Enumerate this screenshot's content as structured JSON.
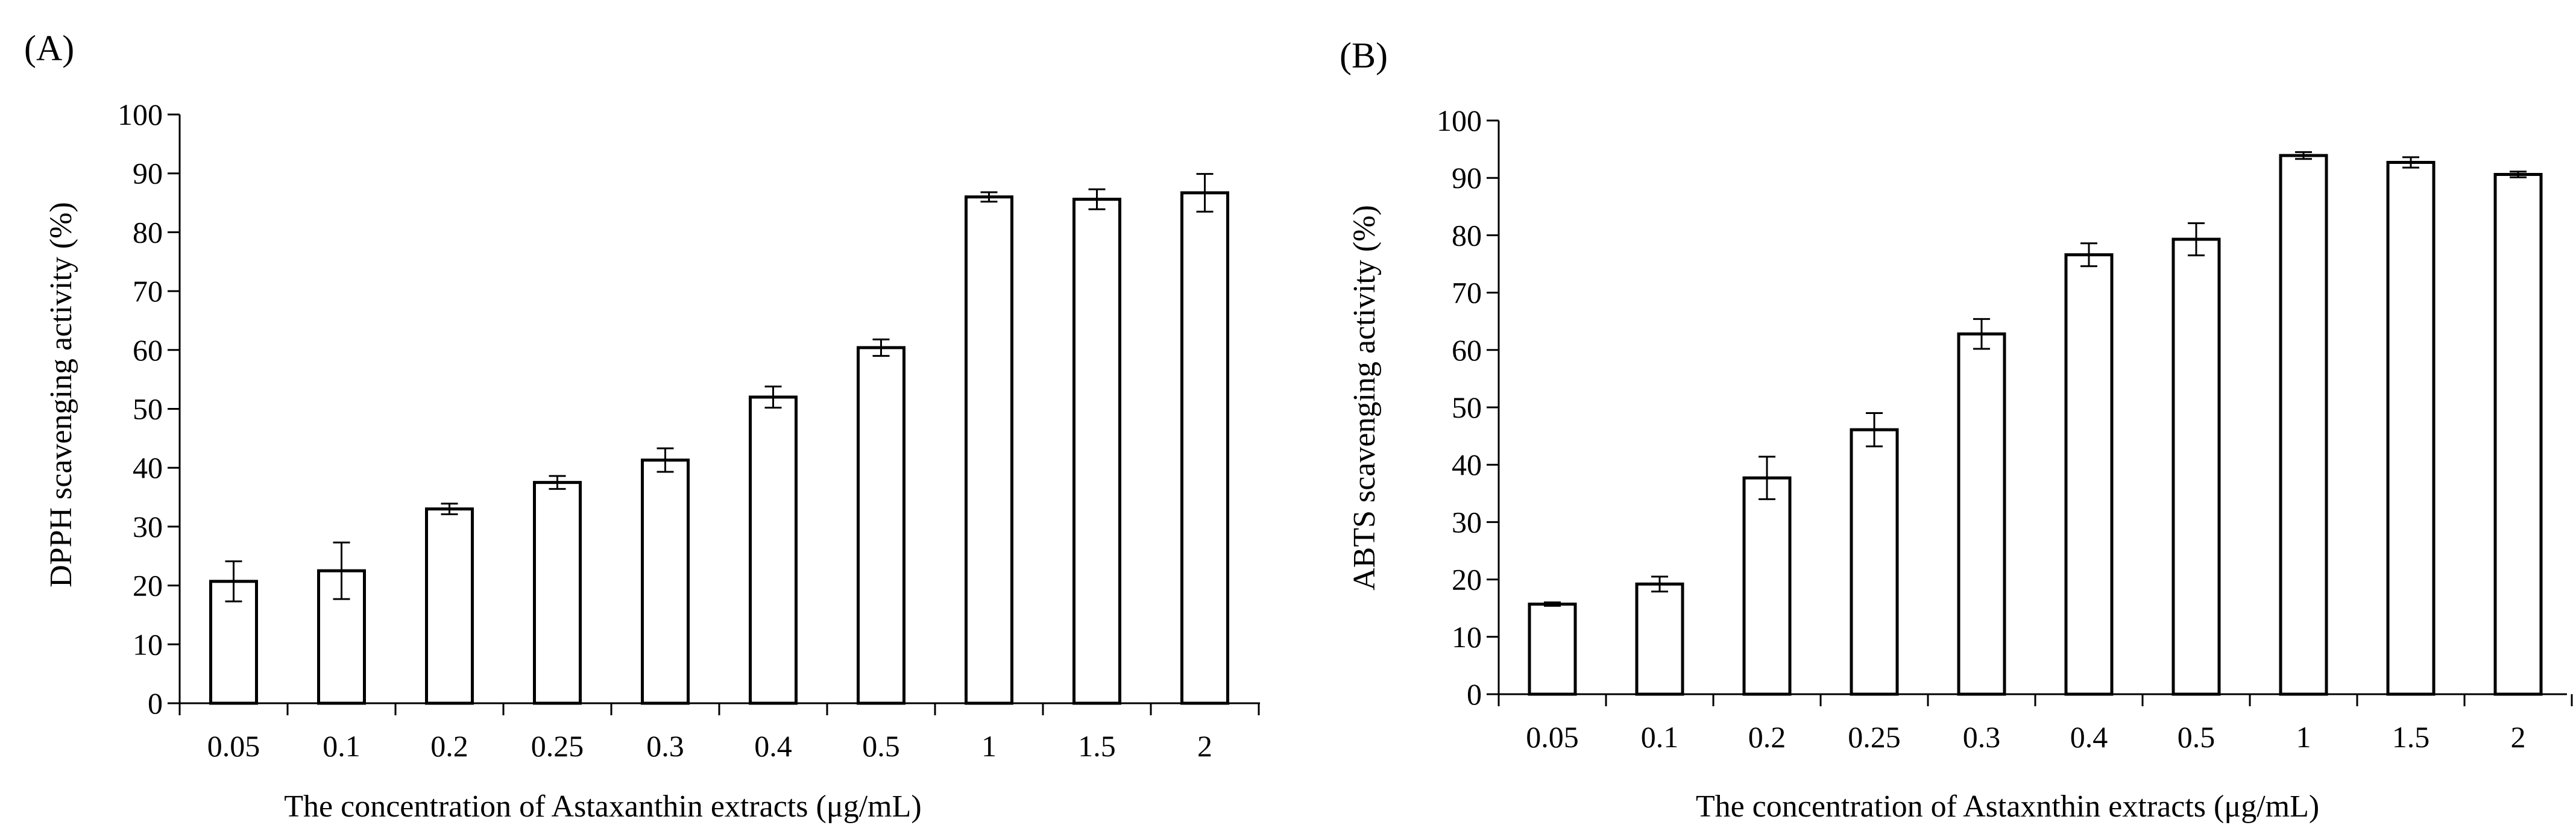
{
  "chart_data": [
    {
      "type": "bar",
      "panel": "(A)",
      "categories": [
        "0.05",
        "0.1",
        "0.2",
        "0.25",
        "0.3",
        "0.4",
        "0.5",
        "1",
        "1.5",
        "2"
      ],
      "values": [
        20.7,
        22.5,
        33.0,
        37.5,
        41.3,
        52.0,
        60.4,
        86.0,
        85.6,
        86.7
      ],
      "errors": [
        3.4,
        4.8,
        0.9,
        1.1,
        2.0,
        1.8,
        1.4,
        0.8,
        1.7,
        3.2
      ],
      "ylabel": "DPPH scavenging activity (%)",
      "xlabel": "The concentration of Astaxanthin extracts (μg/mL)",
      "ylim": [
        0,
        100
      ],
      "yticks": [
        "0",
        "10",
        "20",
        "30",
        "40",
        "50",
        "60",
        "70",
        "80",
        "90",
        "100"
      ],
      "grid": false
    },
    {
      "type": "bar",
      "panel": "(B)",
      "categories": [
        "0.05",
        "0.1",
        "0.2",
        "0.25",
        "0.3",
        "0.4",
        "0.5",
        "1",
        "1.5",
        "2"
      ],
      "values": [
        15.7,
        19.2,
        37.7,
        46.1,
        62.8,
        76.6,
        79.3,
        93.9,
        92.7,
        90.6
      ],
      "errors": [
        0.3,
        1.3,
        3.7,
        2.9,
        2.6,
        2.0,
        2.8,
        0.6,
        0.9,
        0.5
      ],
      "ylabel": "ABTS scavenging activity (%)",
      "xlabel": "The concentration of Astaxnthin extracts (μg/mL)",
      "ylim": [
        0,
        100
      ],
      "yticks": [
        "0",
        "10",
        "20",
        "30",
        "40",
        "50",
        "60",
        "70",
        "80",
        "90",
        "100"
      ],
      "grid": false
    }
  ]
}
